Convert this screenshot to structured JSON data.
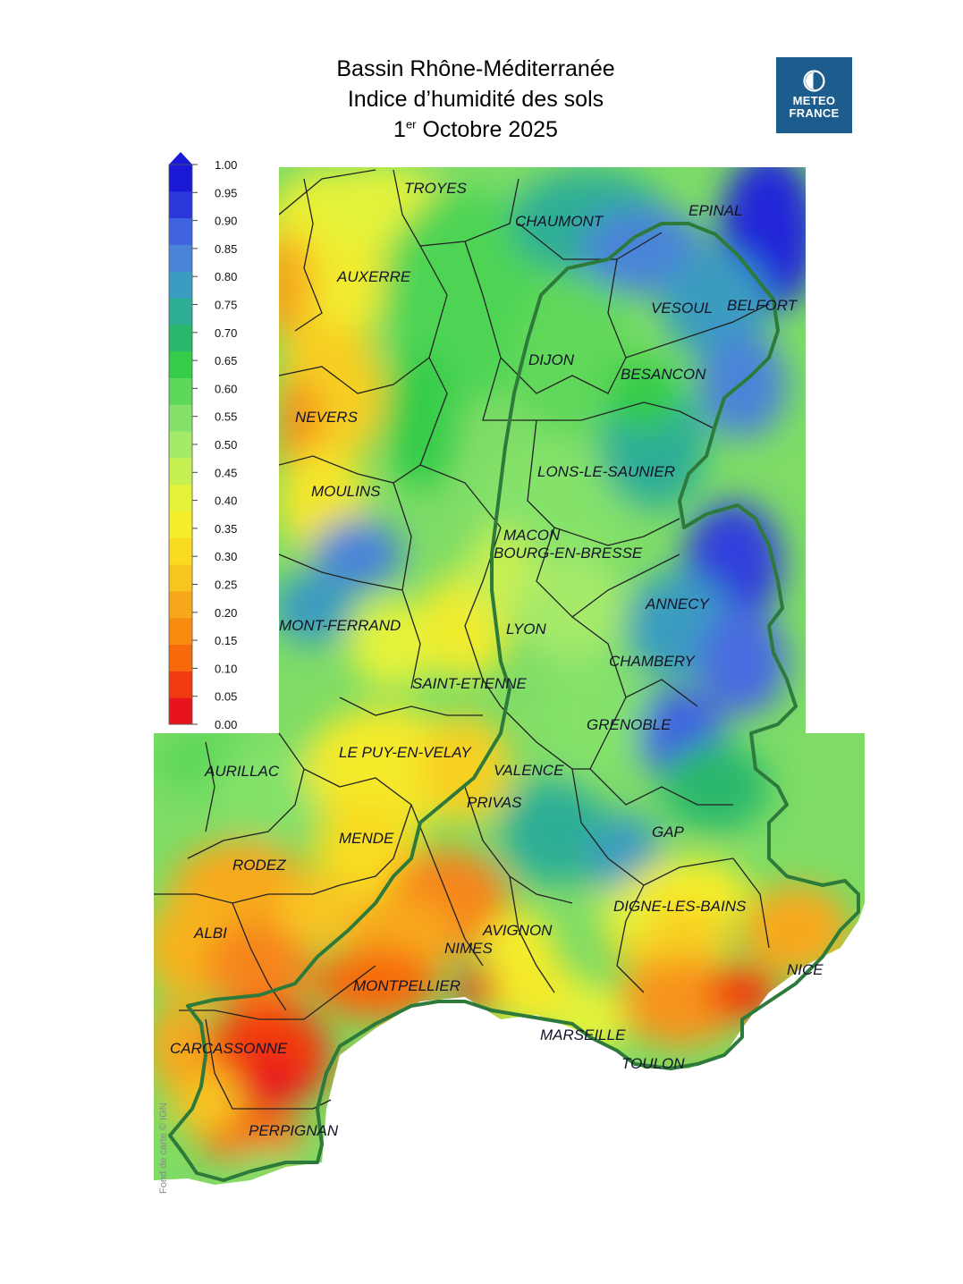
{
  "header": {
    "title_line1": "Bassin Rhône-Méditerranée",
    "title_line2": "Indice d’humidité des sols",
    "date_day": "1",
    "date_sup": "er",
    "date_rest": " Octobre 2025"
  },
  "logo": {
    "line1": "METEO",
    "line2": "FRANCE",
    "color": "#1d5d8e"
  },
  "legend": {
    "ticks": [
      "1.00",
      "0.95",
      "0.90",
      "0.85",
      "0.80",
      "0.75",
      "0.70",
      "0.65",
      "0.60",
      "0.55",
      "0.50",
      "0.45",
      "0.40",
      "0.35",
      "0.30",
      "0.25",
      "0.20",
      "0.15",
      "0.10",
      "0.05",
      "0.00"
    ],
    "colors_bottom_to_top": [
      "#e8141c",
      "#f23a10",
      "#f66a0c",
      "#f78c10",
      "#f7a81a",
      "#f8c420",
      "#f9dc22",
      "#f6ee2c",
      "#e4f33a",
      "#c6ef52",
      "#a6ea6a",
      "#84e26a",
      "#5ed85a",
      "#36cc48",
      "#2ab86c",
      "#2fae96",
      "#3a9cc0",
      "#4a84d8",
      "#4064e0",
      "#2a38dc",
      "#1a1ad6"
    ]
  },
  "cities": [
    {
      "name": "TROYES"
    },
    {
      "name": "CHAUMONT"
    },
    {
      "name": "EPINAL"
    },
    {
      "name": "AUXERRE"
    },
    {
      "name": "VESOUL"
    },
    {
      "name": "BELFORT"
    },
    {
      "name": "DIJON"
    },
    {
      "name": "BESANCON"
    },
    {
      "name": "NEVERS"
    },
    {
      "name": "LONS-LE-SAUNIER"
    },
    {
      "name": "MOULINS"
    },
    {
      "name": "MACON"
    },
    {
      "name": "BOURG-EN-BRESSE"
    },
    {
      "name": "ANNECY"
    },
    {
      "name": "MONT-FERRAND"
    },
    {
      "name": "LYON"
    },
    {
      "name": "CHAMBERY"
    },
    {
      "name": "SAINT-ETIENNE"
    },
    {
      "name": "GRENOBLE"
    },
    {
      "name": "LE PUY-EN-VELAY"
    },
    {
      "name": "AURILLAC"
    },
    {
      "name": "VALENCE"
    },
    {
      "name": "PRIVAS"
    },
    {
      "name": "MENDE"
    },
    {
      "name": "GAP"
    },
    {
      "name": "RODEZ"
    },
    {
      "name": "DIGNE-LES-BAINS"
    },
    {
      "name": "ALBI"
    },
    {
      "name": "AVIGNON"
    },
    {
      "name": "NIMES"
    },
    {
      "name": "NICE"
    },
    {
      "name": "MONTPELLIER"
    },
    {
      "name": "CARCASSONNE"
    },
    {
      "name": "MARSEILLE"
    },
    {
      "name": "TOULON"
    },
    {
      "name": "PERPIGNAN"
    }
  ],
  "basin_outline_color": "#2d7a3a",
  "credit": "Fond de carte © IGN"
}
